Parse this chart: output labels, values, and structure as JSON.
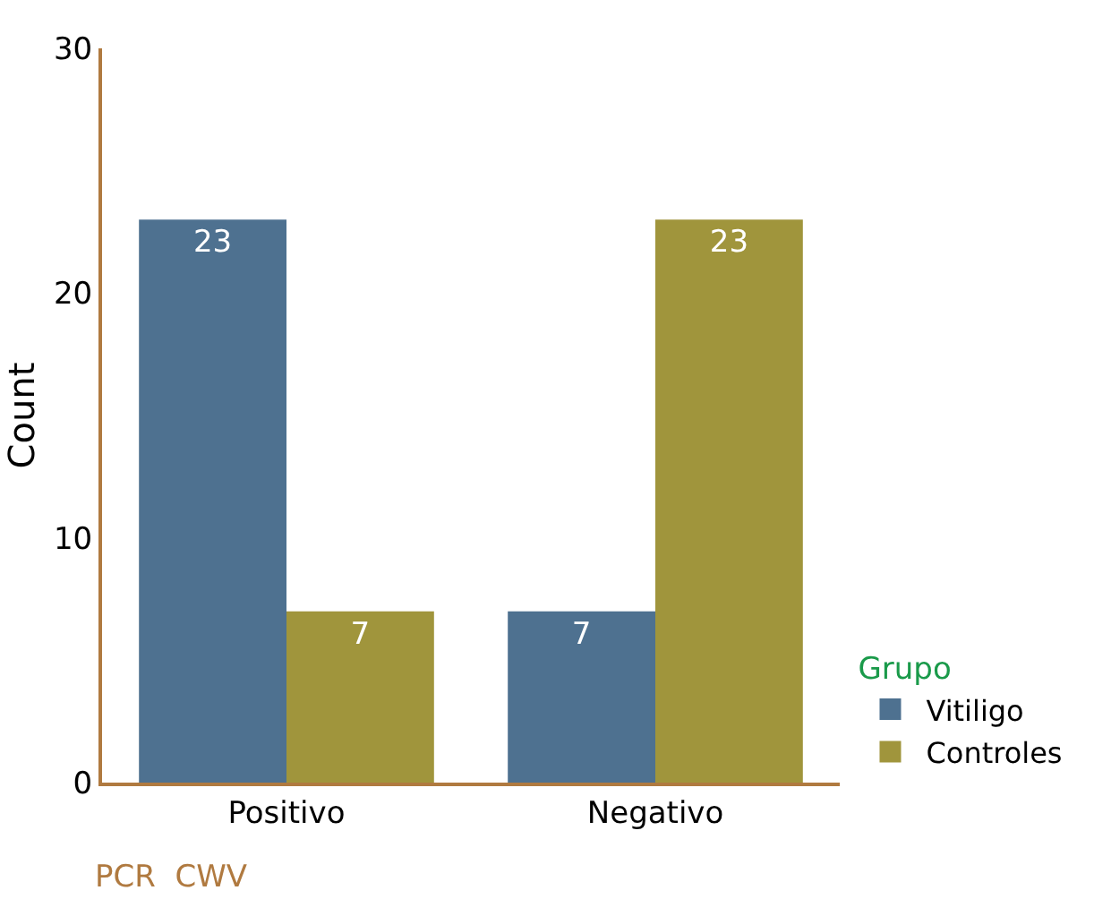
{
  "chart_data": {
    "type": "bar",
    "xlabel": "PCR  CWV",
    "ylabel": "Count",
    "legend_title": "Grupo",
    "categories": [
      "Positivo",
      "Negativo"
    ],
    "series": [
      {
        "name": "Vitiligo",
        "color": "#4e7190",
        "values": [
          23,
          7
        ]
      },
      {
        "name": "Controles",
        "color": "#a0953c",
        "values": [
          7,
          23
        ]
      }
    ],
    "ylim": [
      0,
      30
    ],
    "yticks": [
      0,
      10,
      20,
      30
    ],
    "grid": false,
    "legend": "right",
    "data_labels": true
  }
}
